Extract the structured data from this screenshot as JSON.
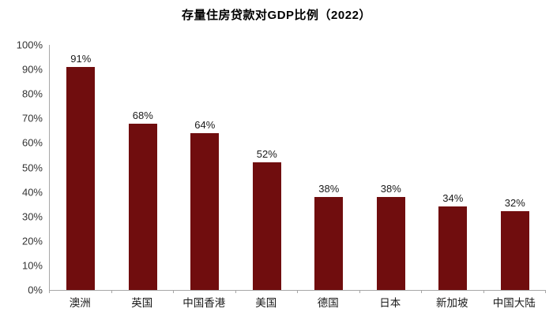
{
  "title": "存量住房贷款对GDP比例（2022）",
  "colors": {
    "bar": "#700d0e",
    "axis": "#a6a6a6",
    "text": "#1a1a1a",
    "title": "#000000"
  },
  "chart_data": {
    "type": "bar",
    "title": "存量住房贷款对GDP比例（2022）",
    "categories": [
      "澳洲",
      "英国",
      "中国香港",
      "美国",
      "德国",
      "日本",
      "新加坡",
      "中国大陆"
    ],
    "values": [
      91,
      68,
      64,
      52,
      38,
      38,
      34,
      32
    ],
    "value_labels": [
      "91%",
      "68%",
      "64%",
      "52%",
      "38%",
      "38%",
      "34%",
      "32%"
    ],
    "xlabel": "",
    "ylabel": "",
    "ylim": [
      0,
      100
    ],
    "y_tick_step": 10,
    "y_tick_labels": [
      "100%",
      "90%",
      "80%",
      "70%",
      "60%",
      "50%",
      "40%",
      "30%",
      "20%",
      "10%",
      "0%"
    ],
    "grid": "off",
    "legend": "none",
    "bar_color": "#700d0e"
  }
}
